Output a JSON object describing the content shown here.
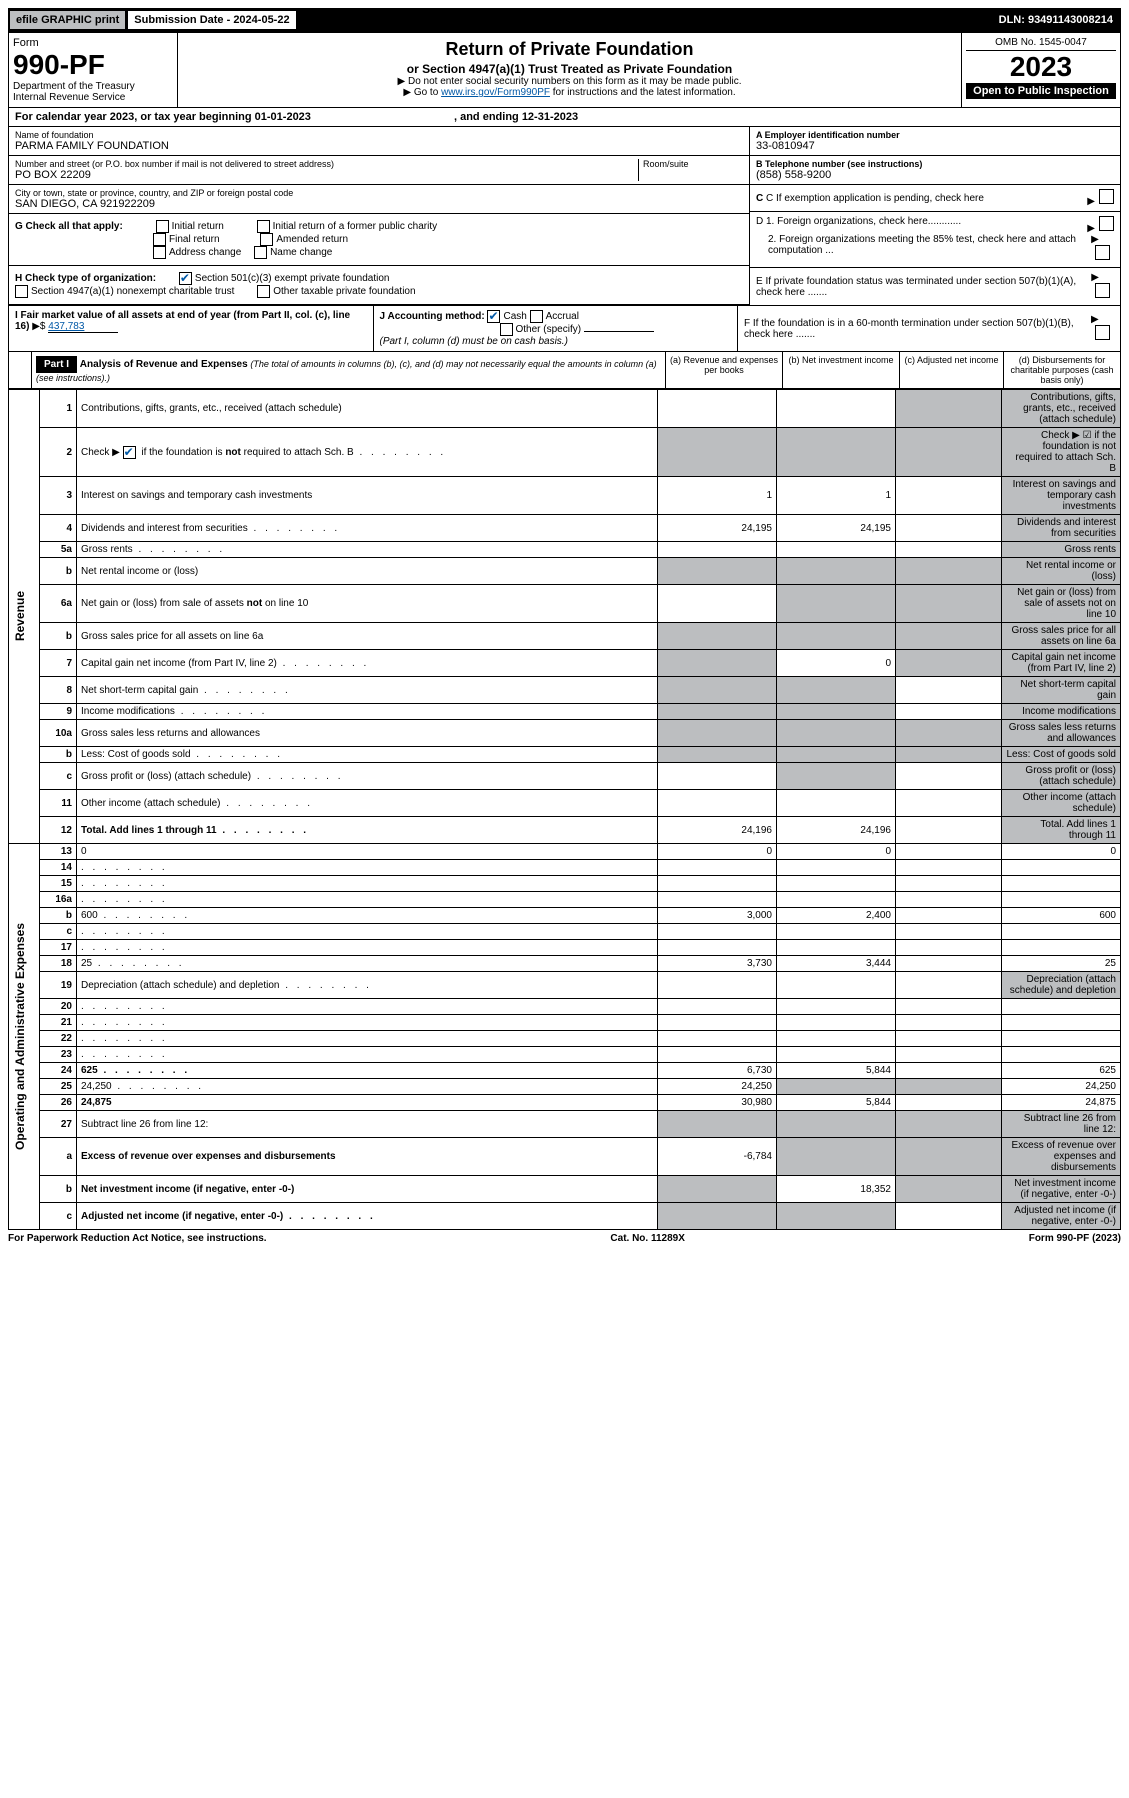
{
  "top": {
    "efile": "efile GRAPHIC print",
    "submission_label": "Submission Date - 2024-05-22",
    "dln": "DLN: 93491143008214"
  },
  "header": {
    "form_label": "Form",
    "form_no": "990-PF",
    "dept": "Department of the Treasury",
    "irs": "Internal Revenue Service",
    "title": "Return of Private Foundation",
    "subtitle": "or Section 4947(a)(1) Trust Treated as Private Foundation",
    "instr1": "▶ Do not enter social security numbers on this form as it may be made public.",
    "instr2_prefix": "▶ Go to ",
    "instr2_link": "www.irs.gov/Form990PF",
    "instr2_suffix": " for instructions and the latest information.",
    "omb": "OMB No. 1545-0047",
    "year": "2023",
    "open": "Open to Public Inspection"
  },
  "cal": {
    "text": "For calendar year 2023, or tax year beginning 01-01-2023",
    "ending": ", and ending 12-31-2023"
  },
  "info": {
    "name_label": "Name of foundation",
    "name": "PARMA FAMILY FOUNDATION",
    "addr_label": "Number and street (or P.O. box number if mail is not delivered to street address)",
    "room_label": "Room/suite",
    "addr": "PO BOX 22209",
    "city_label": "City or town, state or province, country, and ZIP or foreign postal code",
    "city": "SAN DIEGO, CA  921922209",
    "ein_label": "A Employer identification number",
    "ein": "33-0810947",
    "phone_label": "B Telephone number (see instructions)",
    "phone": "(858) 558-9200",
    "c_label": "C If exemption application is pending, check here",
    "d1": "D 1. Foreign organizations, check here............",
    "d2": "2. Foreign organizations meeting the 85% test, check here and attach computation ...",
    "e": "E  If private foundation status was terminated under section 507(b)(1)(A), check here .......",
    "f": "F  If the foundation is in a 60-month termination under section 507(b)(1)(B), check here .......",
    "g_label": "G Check all that apply:",
    "g_opts": [
      "Initial return",
      "Final return",
      "Address change",
      "Initial return of a former public charity",
      "Amended return",
      "Name change"
    ],
    "h_label": "H Check type of organization:",
    "h1": "Section 501(c)(3) exempt private foundation",
    "h2": "Section 4947(a)(1) nonexempt charitable trust",
    "h3": "Other taxable private foundation",
    "i_label": "I Fair market value of all assets at end of year (from Part II, col. (c), line 16)",
    "i_val": "437,783",
    "j_label": "J Accounting method:",
    "j_cash": "Cash",
    "j_accrual": "Accrual",
    "j_other": "Other (specify)",
    "j_note": "(Part I, column (d) must be on cash basis.)"
  },
  "part1": {
    "label": "Part I",
    "title": "Analysis of Revenue and Expenses",
    "title_note": " (The total of amounts in columns (b), (c), and (d) may not necessarily equal the amounts in column (a) (see instructions).)",
    "col_a": "(a)    Revenue and expenses per books",
    "col_b": "(b)    Net investment income",
    "col_c": "(c)    Adjusted net income",
    "col_d": "(d)   Disbursements for charitable purposes (cash basis only)",
    "side_rev": "Revenue",
    "side_exp": "Operating and Administrative Expenses"
  },
  "rows": [
    {
      "n": "1",
      "d": "Contributions, gifts, grants, etc., received (attach schedule)",
      "a": "",
      "b": "",
      "c_grey": true,
      "d_grey": true
    },
    {
      "n": "2",
      "d": "Check ▶ ☑ if the foundation is not required to attach Sch. B",
      "a_grey": true,
      "b_grey": true,
      "c_grey": true,
      "d_grey": true,
      "dots": true
    },
    {
      "n": "3",
      "d": "Interest on savings and temporary cash investments",
      "a": "1",
      "b": "1",
      "c": "",
      "d_grey": true
    },
    {
      "n": "4",
      "d": "Dividends and interest from securities",
      "a": "24,195",
      "b": "24,195",
      "c": "",
      "d_grey": true,
      "dots": true
    },
    {
      "n": "5a",
      "d": "Gross rents",
      "a": "",
      "b": "",
      "c": "",
      "d_grey": true,
      "dots": true
    },
    {
      "n": "b",
      "d": "Net rental income or (loss)",
      "a_grey": true,
      "b_grey": true,
      "c_grey": true,
      "d_grey": true,
      "underline": true
    },
    {
      "n": "6a",
      "d": "Net gain or (loss) from sale of assets not on line 10",
      "a": "",
      "b_grey": true,
      "c_grey": true,
      "d_grey": true
    },
    {
      "n": "b",
      "d": "Gross sales price for all assets on line 6a",
      "a_grey": true,
      "b_grey": true,
      "c_grey": true,
      "d_grey": true,
      "underline": true
    },
    {
      "n": "7",
      "d": "Capital gain net income (from Part IV, line 2)",
      "a_grey": true,
      "b": "0",
      "c_grey": true,
      "d_grey": true,
      "dots": true
    },
    {
      "n": "8",
      "d": "Net short-term capital gain",
      "a_grey": true,
      "b_grey": true,
      "c": "",
      "d_grey": true,
      "dots": true
    },
    {
      "n": "9",
      "d": "Income modifications",
      "a_grey": true,
      "b_grey": true,
      "c": "",
      "d_grey": true,
      "dots": true
    },
    {
      "n": "10a",
      "d": "Gross sales less returns and allowances",
      "a_grey": true,
      "b_grey": true,
      "c_grey": true,
      "d_grey": true,
      "underline": true
    },
    {
      "n": "b",
      "d": "Less: Cost of goods sold",
      "a_grey": true,
      "b_grey": true,
      "c_grey": true,
      "d_grey": true,
      "dots": true,
      "underline": true
    },
    {
      "n": "c",
      "d": "Gross profit or (loss) (attach schedule)",
      "a": "",
      "b_grey": true,
      "c": "",
      "d_grey": true,
      "dots": true
    },
    {
      "n": "11",
      "d": "Other income (attach schedule)",
      "a": "",
      "b": "",
      "c": "",
      "d_grey": true,
      "dots": true
    },
    {
      "n": "12",
      "d": "Total. Add lines 1 through 11",
      "a": "24,196",
      "b": "24,196",
      "c": "",
      "d_grey": true,
      "bold": true,
      "dots": true
    },
    {
      "n": "13",
      "d": "0",
      "a": "0",
      "b": "0",
      "c": ""
    },
    {
      "n": "14",
      "d": "",
      "a": "",
      "b": "",
      "c": "",
      "dots": true
    },
    {
      "n": "15",
      "d": "",
      "a": "",
      "b": "",
      "c": "",
      "dots": true
    },
    {
      "n": "16a",
      "d": "",
      "a": "",
      "b": "",
      "c": "",
      "dots": true
    },
    {
      "n": "b",
      "d": "600",
      "a": "3,000",
      "b": "2,400",
      "c": "",
      "dots": true
    },
    {
      "n": "c",
      "d": "",
      "a": "",
      "b": "",
      "c": "",
      "dots": true
    },
    {
      "n": "17",
      "d": "",
      "a": "",
      "b": "",
      "c": "",
      "dots": true
    },
    {
      "n": "18",
      "d": "25",
      "a": "3,730",
      "b": "3,444",
      "c": "",
      "dots": true
    },
    {
      "n": "19",
      "d": "Depreciation (attach schedule) and depletion",
      "a": "",
      "b": "",
      "c": "",
      "d_grey": true,
      "dots": true
    },
    {
      "n": "20",
      "d": "",
      "a": "",
      "b": "",
      "c": "",
      "dots": true
    },
    {
      "n": "21",
      "d": "",
      "a": "",
      "b": "",
      "c": "",
      "dots": true
    },
    {
      "n": "22",
      "d": "",
      "a": "",
      "b": "",
      "c": "",
      "dots": true
    },
    {
      "n": "23",
      "d": "",
      "a": "",
      "b": "",
      "c": "",
      "dots": true
    },
    {
      "n": "24",
      "d": "625",
      "a": "6,730",
      "b": "5,844",
      "c": "",
      "bold": true,
      "dots": true
    },
    {
      "n": "25",
      "d": "24,250",
      "a": "24,250",
      "b_grey": true,
      "c_grey": true,
      "dots": true
    },
    {
      "n": "26",
      "d": "24,875",
      "a": "30,980",
      "b": "5,844",
      "c": "",
      "bold": true
    },
    {
      "n": "27",
      "d": "Subtract line 26 from line 12:",
      "a_grey": true,
      "b_grey": true,
      "c_grey": true,
      "d_grey": true
    },
    {
      "n": "a",
      "d": "Excess of revenue over expenses and disbursements",
      "a": "-6,784",
      "b_grey": true,
      "c_grey": true,
      "d_grey": true,
      "bold": true
    },
    {
      "n": "b",
      "d": "Net investment income (if negative, enter -0-)",
      "a_grey": true,
      "b": "18,352",
      "c_grey": true,
      "d_grey": true,
      "bold": true
    },
    {
      "n": "c",
      "d": "Adjusted net income (if negative, enter -0-)",
      "a_grey": true,
      "b_grey": true,
      "c": "",
      "d_grey": true,
      "bold": true,
      "dots": true
    }
  ],
  "footer": {
    "left": "For Paperwork Reduction Act Notice, see instructions.",
    "mid": "Cat. No. 11289X",
    "right": "Form 990-PF (2023)"
  }
}
